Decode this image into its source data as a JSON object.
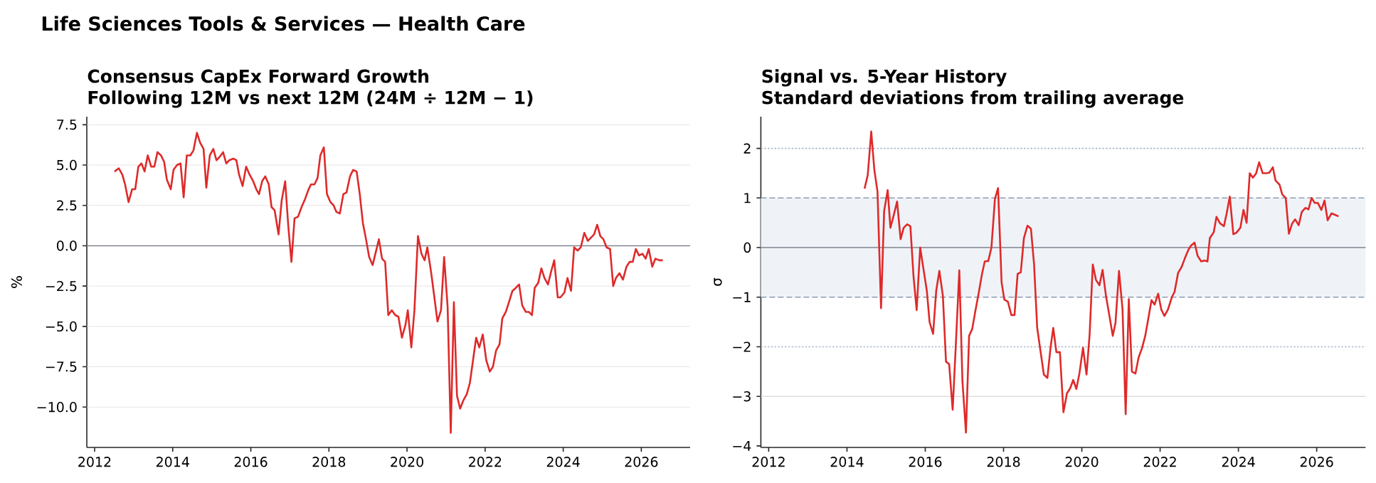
{
  "chart_data": [
    {
      "type": "line",
      "title": "Consensus CapEx Forward Growth",
      "subtitle": "Following 12M vs next 12M (24M ÷ 12M − 1)",
      "ylabel": "%",
      "annotations": [
        "Life Sciences Tools & Services — Health Care"
      ],
      "x": [
        2012.51,
        2012.62,
        2012.71,
        2012.78,
        2012.87,
        2012.96,
        2013.04,
        2013.12,
        2013.2,
        2013.28,
        2013.36,
        2013.45,
        2013.53,
        2013.61,
        2013.7,
        2013.78,
        2013.85,
        2013.95,
        2014.02,
        2014.11,
        2014.2,
        2014.28,
        2014.36,
        2014.45,
        2014.53,
        2014.62,
        2014.7,
        2014.79,
        2014.86,
        2014.95,
        2015.04,
        2015.12,
        2015.2,
        2015.29,
        2015.37,
        2015.45,
        2015.55,
        2015.63,
        2015.7,
        2015.79,
        2015.88,
        2015.97,
        2016.06,
        2016.14,
        2016.21,
        2016.29,
        2016.37,
        2016.46,
        2016.53,
        2016.61,
        2016.71,
        2016.79,
        2016.88,
        2016.96,
        2017.04,
        2017.12,
        2017.21,
        2017.3,
        2017.39,
        2017.48,
        2017.54,
        2017.63,
        2017.71,
        2017.78,
        2017.87,
        2017.95,
        2018.04,
        2018.12,
        2018.19,
        2018.28,
        2018.37,
        2018.45,
        2018.54,
        2018.62,
        2018.71,
        2018.79,
        2018.87,
        2018.95,
        2019.03,
        2019.12,
        2019.2,
        2019.28,
        2019.36,
        2019.44,
        2019.52,
        2019.61,
        2019.7,
        2019.78,
        2019.87,
        2019.96,
        2020.02,
        2020.11,
        2020.19,
        2020.28,
        2020.37,
        2020.45,
        2020.52,
        2020.62,
        2020.69,
        2020.78,
        2020.87,
        2020.95,
        2021.04,
        2021.12,
        2021.2,
        2021.28,
        2021.36,
        2021.44,
        2021.53,
        2021.61,
        2021.69,
        2021.77,
        2021.85,
        2021.94,
        2022.03,
        2022.12,
        2022.2,
        2022.28,
        2022.37,
        2022.44,
        2022.53,
        2022.61,
        2022.7,
        2022.79,
        2022.87,
        2022.95,
        2023.04,
        2023.12,
        2023.2,
        2023.27,
        2023.36,
        2023.44,
        2023.52,
        2023.61,
        2023.69,
        2023.77,
        2023.86,
        2023.93,
        2024.03,
        2024.11,
        2024.2,
        2024.28,
        2024.37,
        2024.45,
        2024.54,
        2024.63,
        2024.71,
        2024.79,
        2024.87,
        2024.95,
        2025.03,
        2025.11,
        2025.2,
        2025.28,
        2025.35,
        2025.44,
        2025.53,
        2025.62,
        2025.7,
        2025.78,
        2025.86,
        2025.94,
        2026.03,
        2026.11,
        2026.19,
        2026.28,
        2026.36,
        2026.46,
        2026.55
      ],
      "series": [
        {
          "color": "#de2a2a",
          "values": [
            4.6,
            4.8,
            4.4,
            3.8,
            2.7,
            3.5,
            3.5,
            4.9,
            5.1,
            4.6,
            5.6,
            4.9,
            4.9,
            5.8,
            5.6,
            5.2,
            4.1,
            3.5,
            4.7,
            5.0,
            5.1,
            3.0,
            5.6,
            5.6,
            5.9,
            7.0,
            6.4,
            6.0,
            3.6,
            5.6,
            6.0,
            5.3,
            5.5,
            5.8,
            5.1,
            5.3,
            5.4,
            5.3,
            4.4,
            3.7,
            4.9,
            4.4,
            4.0,
            3.5,
            3.2,
            4.0,
            4.3,
            3.8,
            2.4,
            2.2,
            0.7,
            2.8,
            4.0,
            1.2,
            -1.0,
            1.7,
            1.8,
            2.4,
            2.9,
            3.5,
            3.8,
            3.8,
            4.2,
            5.6,
            6.1,
            3.2,
            2.7,
            2.5,
            2.1,
            2.0,
            3.2,
            3.3,
            4.3,
            4.7,
            4.6,
            3.2,
            1.4,
            0.4,
            -0.7,
            -1.2,
            -0.4,
            0.4,
            -0.8,
            -1.0,
            -4.3,
            -4.0,
            -4.3,
            -4.4,
            -5.7,
            -4.9,
            -4.0,
            -6.3,
            -4.0,
            0.6,
            -0.5,
            -0.9,
            -0.1,
            -1.7,
            -3.0,
            -4.7,
            -4.0,
            -0.7,
            -3.8,
            -11.6,
            -3.5,
            -9.3,
            -10.1,
            -9.6,
            -9.2,
            -8.5,
            -7.1,
            -5.7,
            -6.3,
            -5.5,
            -7.1,
            -7.8,
            -7.5,
            -6.5,
            -6.1,
            -4.5,
            -4.1,
            -3.5,
            -2.8,
            -2.6,
            -2.4,
            -3.7,
            -4.1,
            -4.1,
            -4.3,
            -2.6,
            -2.3,
            -1.4,
            -2.0,
            -2.4,
            -1.6,
            -0.9,
            -3.2,
            -3.2,
            -2.9,
            -2.0,
            -2.8,
            -0.1,
            -0.3,
            -0.1,
            0.8,
            0.3,
            0.5,
            0.7,
            1.3,
            0.6,
            0.4,
            -0.1,
            -0.2,
            -2.5,
            -2.0,
            -1.7,
            -2.1,
            -1.3,
            -1.0,
            -1.0,
            -0.2,
            -0.6,
            -0.5,
            -0.8,
            -0.2,
            -1.3,
            -0.8,
            -0.9,
            -0.9
          ]
        }
      ],
      "xlim": [
        2011.8,
        2027.25
      ],
      "ylim": [
        -12.5,
        8.0
      ],
      "xticks": [
        2012,
        2014,
        2016,
        2018,
        2020,
        2022,
        2024,
        2026
      ],
      "yticks": [
        {
          "value": -10,
          "label": "−10.0"
        },
        {
          "value": -7.5,
          "label": "−7.5"
        },
        {
          "value": -5,
          "label": "−5.0"
        },
        {
          "value": -2.5,
          "label": "−2.5"
        },
        {
          "value": 0,
          "label": "0.0"
        },
        2.5,
        {
          "value": 5,
          "label": "5.0"
        },
        7.5
      ],
      "grid": "y",
      "ref_lines": [
        {
          "axis": "y",
          "value": 0,
          "color": "#7f8490",
          "line_style": "solid"
        }
      ]
    },
    {
      "type": "line",
      "title": "Signal vs. 5-Year History",
      "subtitle": "Standard deviations from trailing average",
      "ylabel": "σ",
      "x": [
        2014.45,
        2014.53,
        2014.62,
        2014.7,
        2014.78,
        2014.87,
        2014.95,
        2015.04,
        2015.11,
        2015.2,
        2015.28,
        2015.37,
        2015.45,
        2015.54,
        2015.62,
        2015.7,
        2015.78,
        2015.87,
        2015.96,
        2016.04,
        2016.11,
        2016.2,
        2016.28,
        2016.36,
        2016.45,
        2016.53,
        2016.61,
        2016.7,
        2016.78,
        2016.87,
        2016.95,
        2017.04,
        2017.12,
        2017.2,
        2017.28,
        2017.36,
        2017.45,
        2017.52,
        2017.61,
        2017.69,
        2017.78,
        2017.86,
        2017.95,
        2018.02,
        2018.11,
        2018.2,
        2018.28,
        2018.36,
        2018.44,
        2018.52,
        2018.61,
        2018.7,
        2018.78,
        2018.86,
        2018.95,
        2019.03,
        2019.12,
        2019.2,
        2019.27,
        2019.35,
        2019.44,
        2019.53,
        2019.62,
        2019.7,
        2019.78,
        2019.86,
        2019.94,
        2020.03,
        2020.12,
        2020.2,
        2020.28,
        2020.36,
        2020.45,
        2020.53,
        2020.62,
        2020.71,
        2020.79,
        2020.86,
        2020.95,
        2021.04,
        2021.12,
        2021.2,
        2021.28,
        2021.37,
        2021.45,
        2021.54,
        2021.62,
        2021.69,
        2021.78,
        2021.86,
        2021.95,
        2022.03,
        2022.11,
        2022.2,
        2022.3,
        2022.37,
        2022.46,
        2022.55,
        2022.63,
        2022.72,
        2022.79,
        2022.88,
        2022.96,
        2023.05,
        2023.13,
        2023.21,
        2023.27,
        2023.37,
        2023.44,
        2023.53,
        2023.63,
        2023.7,
        2023.78,
        2023.87,
        2023.95,
        2024.05,
        2024.13,
        2024.21,
        2024.29,
        2024.37,
        2024.45,
        2024.53,
        2024.62,
        2024.71,
        2024.79,
        2024.88,
        2024.95,
        2025.05,
        2025.12,
        2025.21,
        2025.29,
        2025.37,
        2025.45,
        2025.54,
        2025.62,
        2025.71,
        2025.79,
        2025.87,
        2025.95,
        2026.03,
        2026.12,
        2026.2,
        2026.28,
        2026.38,
        2026.47,
        2026.56
      ],
      "series": [
        {
          "color": "#de2a2a",
          "values": [
            1.19,
            1.46,
            2.34,
            1.56,
            1.13,
            -1.22,
            0.74,
            1.16,
            0.4,
            0.67,
            0.93,
            0.17,
            0.4,
            0.47,
            0.43,
            -0.58,
            -1.26,
            0.0,
            -0.46,
            -0.87,
            -1.5,
            -1.74,
            -0.87,
            -0.47,
            -0.97,
            -2.3,
            -2.35,
            -3.27,
            -1.98,
            -0.46,
            -2.7,
            -3.73,
            -1.78,
            -1.64,
            -1.28,
            -0.94,
            -0.53,
            -0.28,
            -0.27,
            0.0,
            0.98,
            1.2,
            -0.7,
            -1.05,
            -1.09,
            -1.36,
            -1.36,
            -0.53,
            -0.5,
            0.19,
            0.44,
            0.38,
            -0.34,
            -1.62,
            -2.12,
            -2.56,
            -2.63,
            -2.02,
            -1.62,
            -2.11,
            -2.11,
            -3.32,
            -2.94,
            -2.84,
            -2.67,
            -2.85,
            -2.53,
            -2.02,
            -2.56,
            -1.74,
            -0.34,
            -0.65,
            -0.76,
            -0.45,
            -0.99,
            -1.4,
            -1.78,
            -1.52,
            -0.47,
            -1.25,
            -3.36,
            -1.04,
            -2.5,
            -2.54,
            -2.22,
            -2.02,
            -1.78,
            -1.47,
            -1.06,
            -1.15,
            -0.93,
            -1.25,
            -1.38,
            -1.25,
            -1.0,
            -0.89,
            -0.51,
            -0.39,
            -0.22,
            -0.05,
            0.04,
            0.1,
            -0.17,
            -0.28,
            -0.26,
            -0.28,
            0.19,
            0.31,
            0.62,
            0.49,
            0.43,
            0.69,
            1.03,
            0.27,
            0.3,
            0.4,
            0.76,
            0.5,
            1.5,
            1.41,
            1.49,
            1.72,
            1.5,
            1.5,
            1.51,
            1.62,
            1.35,
            1.27,
            1.07,
            1.0,
            0.28,
            0.48,
            0.57,
            0.45,
            0.72,
            0.8,
            0.77,
            1.0,
            0.9,
            0.9,
            0.76,
            0.95,
            0.55,
            0.69,
            0.66,
            0.63
          ]
        }
      ],
      "xlim": [
        2011.8,
        2027.25
      ],
      "ylim": [
        -4.03,
        2.64
      ],
      "xticks": [
        2012,
        2014,
        2016,
        2018,
        2020,
        2022,
        2024,
        2026
      ],
      "yticks": [
        {
          "value": -4,
          "label": "−4"
        },
        {
          "value": -3,
          "label": "−3"
        },
        {
          "value": -2,
          "label": "−2"
        },
        {
          "value": -1,
          "label": "−1"
        },
        0,
        1,
        2
      ],
      "bands": [
        {
          "axis": "y",
          "from": -1,
          "to": 1,
          "color": "#eff3f8"
        }
      ],
      "ref_lines": [
        {
          "axis": "y",
          "value": 0,
          "color": "#7f8490",
          "line_style": "solid"
        },
        {
          "axis": "y",
          "value": 1,
          "color": "#8f9cb2",
          "line_style": "dashed"
        },
        {
          "axis": "y",
          "value": -1,
          "color": "#8f9cb2",
          "line_style": "dashed"
        },
        {
          "axis": "y",
          "value": 2,
          "color": "#a9b6cc",
          "line_style": "dotted"
        },
        {
          "axis": "y",
          "value": -2,
          "color": "#a9b6cc",
          "line_style": "dotted"
        },
        {
          "axis": "y",
          "value": -3,
          "color": "#dedede",
          "line_style": "solid"
        }
      ]
    }
  ]
}
